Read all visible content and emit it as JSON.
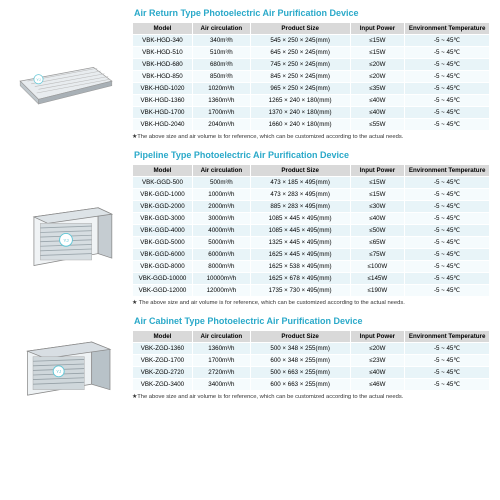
{
  "sections": [
    {
      "title": "Air Return Type Photoelectric Air Purification Device",
      "title_color": "#2aa9c9",
      "columns": [
        "Model",
        "Air circulation",
        "Product Size",
        "Input Power",
        "Environment Temperature"
      ],
      "rows": [
        [
          "VBK-HGD-340",
          "340m³/h",
          "545 × 250 × 245(mm)",
          "≤15W",
          "-5 ~ 45℃"
        ],
        [
          "VBK-HGD-510",
          "510m³/h",
          "645 × 250 × 245(mm)",
          "≤15W",
          "-5 ~ 45℃"
        ],
        [
          "VBK-HGD-680",
          "680m³/h",
          "745 × 250 × 245(mm)",
          "≤20W",
          "-5 ~ 45℃"
        ],
        [
          "VBK-HGD-850",
          "850m³/h",
          "845 × 250 × 245(mm)",
          "≤20W",
          "-5 ~ 45℃"
        ],
        [
          "VBK-HGD-1020",
          "1020m³/h",
          "965 × 250 × 245(mm)",
          "≤35W",
          "-5 ~ 45℃"
        ],
        [
          "VBK-HGD-1360",
          "1360m³/h",
          "1265 × 240 × 180(mm)",
          "≤40W",
          "-5 ~ 45℃"
        ],
        [
          "VBK-HGD-1700",
          "1700m³/h",
          "1370 × 240 × 180(mm)",
          "≤40W",
          "-5 ~ 45℃"
        ],
        [
          "VBK-HGD-2040",
          "2040m³/h",
          "1660 × 240 × 180(mm)",
          "≤55W",
          "-5 ~ 45℃"
        ]
      ],
      "footnote": "★The above size and air volume is for reference, which can be customized according to the actual needs."
    },
    {
      "title": "Pipeline Type Photoelectric Air Purification Device",
      "title_color": "#2aa9c9",
      "columns": [
        "Model",
        "Air circulation",
        "Product Size",
        "Input Power",
        "Environment Temperature"
      ],
      "rows": [
        [
          "VBK-GGD-500",
          "500m³/h",
          "473 × 185 × 495(mm)",
          "≤15W",
          "-5 ~ 45℃"
        ],
        [
          "VBK-GGD-1000",
          "1000m³/h",
          "473 × 283 × 495(mm)",
          "≤15W",
          "-5 ~ 45℃"
        ],
        [
          "VBK-GGD-2000",
          "2000m³/h",
          "885 × 283 × 495(mm)",
          "≤30W",
          "-5 ~ 45℃"
        ],
        [
          "VBK-GGD-3000",
          "3000m³/h",
          "1085 × 445 × 495(mm)",
          "≤40W",
          "-5 ~ 45℃"
        ],
        [
          "VBK-GGD-4000",
          "4000m³/h",
          "1085 × 445 × 495(mm)",
          "≤50W",
          "-5 ~ 45℃"
        ],
        [
          "VBK-GGD-5000",
          "5000m³/h",
          "1325 × 445 × 495(mm)",
          "≤65W",
          "-5 ~ 45℃"
        ],
        [
          "VBK-GGD-6000",
          "6000m³/h",
          "1625 × 445 × 495(mm)",
          "≤75W",
          "-5 ~ 45℃"
        ],
        [
          "VBK-GGD-8000",
          "8000m³/h",
          "1625 × 538 × 495(mm)",
          "≤100W",
          "-5 ~ 45℃"
        ],
        [
          "VBK-GGD-10000",
          "10000m³/h",
          "1625 × 678 × 495(mm)",
          "≤145W",
          "-5 ~ 45℃"
        ],
        [
          "VBK-GGD-12000",
          "12000m³/h",
          "1735 × 730 × 495(mm)",
          "≤190W",
          "-5 ~ 45℃"
        ]
      ],
      "footnote": "★ The above size and air volume is for reference, which can be customized according to the actual needs."
    },
    {
      "title": "Air Cabinet Type Photoelectric Air Purification Device",
      "title_color": "#2aa9c9",
      "columns": [
        "Model",
        "Air circulation",
        "Product Size",
        "Input Power",
        "Environment Temperature"
      ],
      "rows": [
        [
          "VBK-ZGD-1360",
          "1360m³/h",
          "500 × 348 × 255(mm)",
          "≤20W",
          "-5 ~ 45℃"
        ],
        [
          "VBK-ZGD-1700",
          "1700m³/h",
          "600 × 348 × 255(mm)",
          "≤23W",
          "-5 ~ 45℃"
        ],
        [
          "VBK-ZGD-2720",
          "2720m³/h",
          "500 × 663 × 255(mm)",
          "≤40W",
          "-5 ~ 45℃"
        ],
        [
          "VBK-ZGD-3400",
          "3400m³/h",
          "600 × 663 × 255(mm)",
          "≤46W",
          "-5 ~ 45℃"
        ]
      ],
      "footnote": "★The above size and air volume is for reference, which can be customized according to the actual needs."
    }
  ],
  "column_widths": [
    "60px",
    "58px",
    "100px",
    "55px",
    "85px"
  ]
}
